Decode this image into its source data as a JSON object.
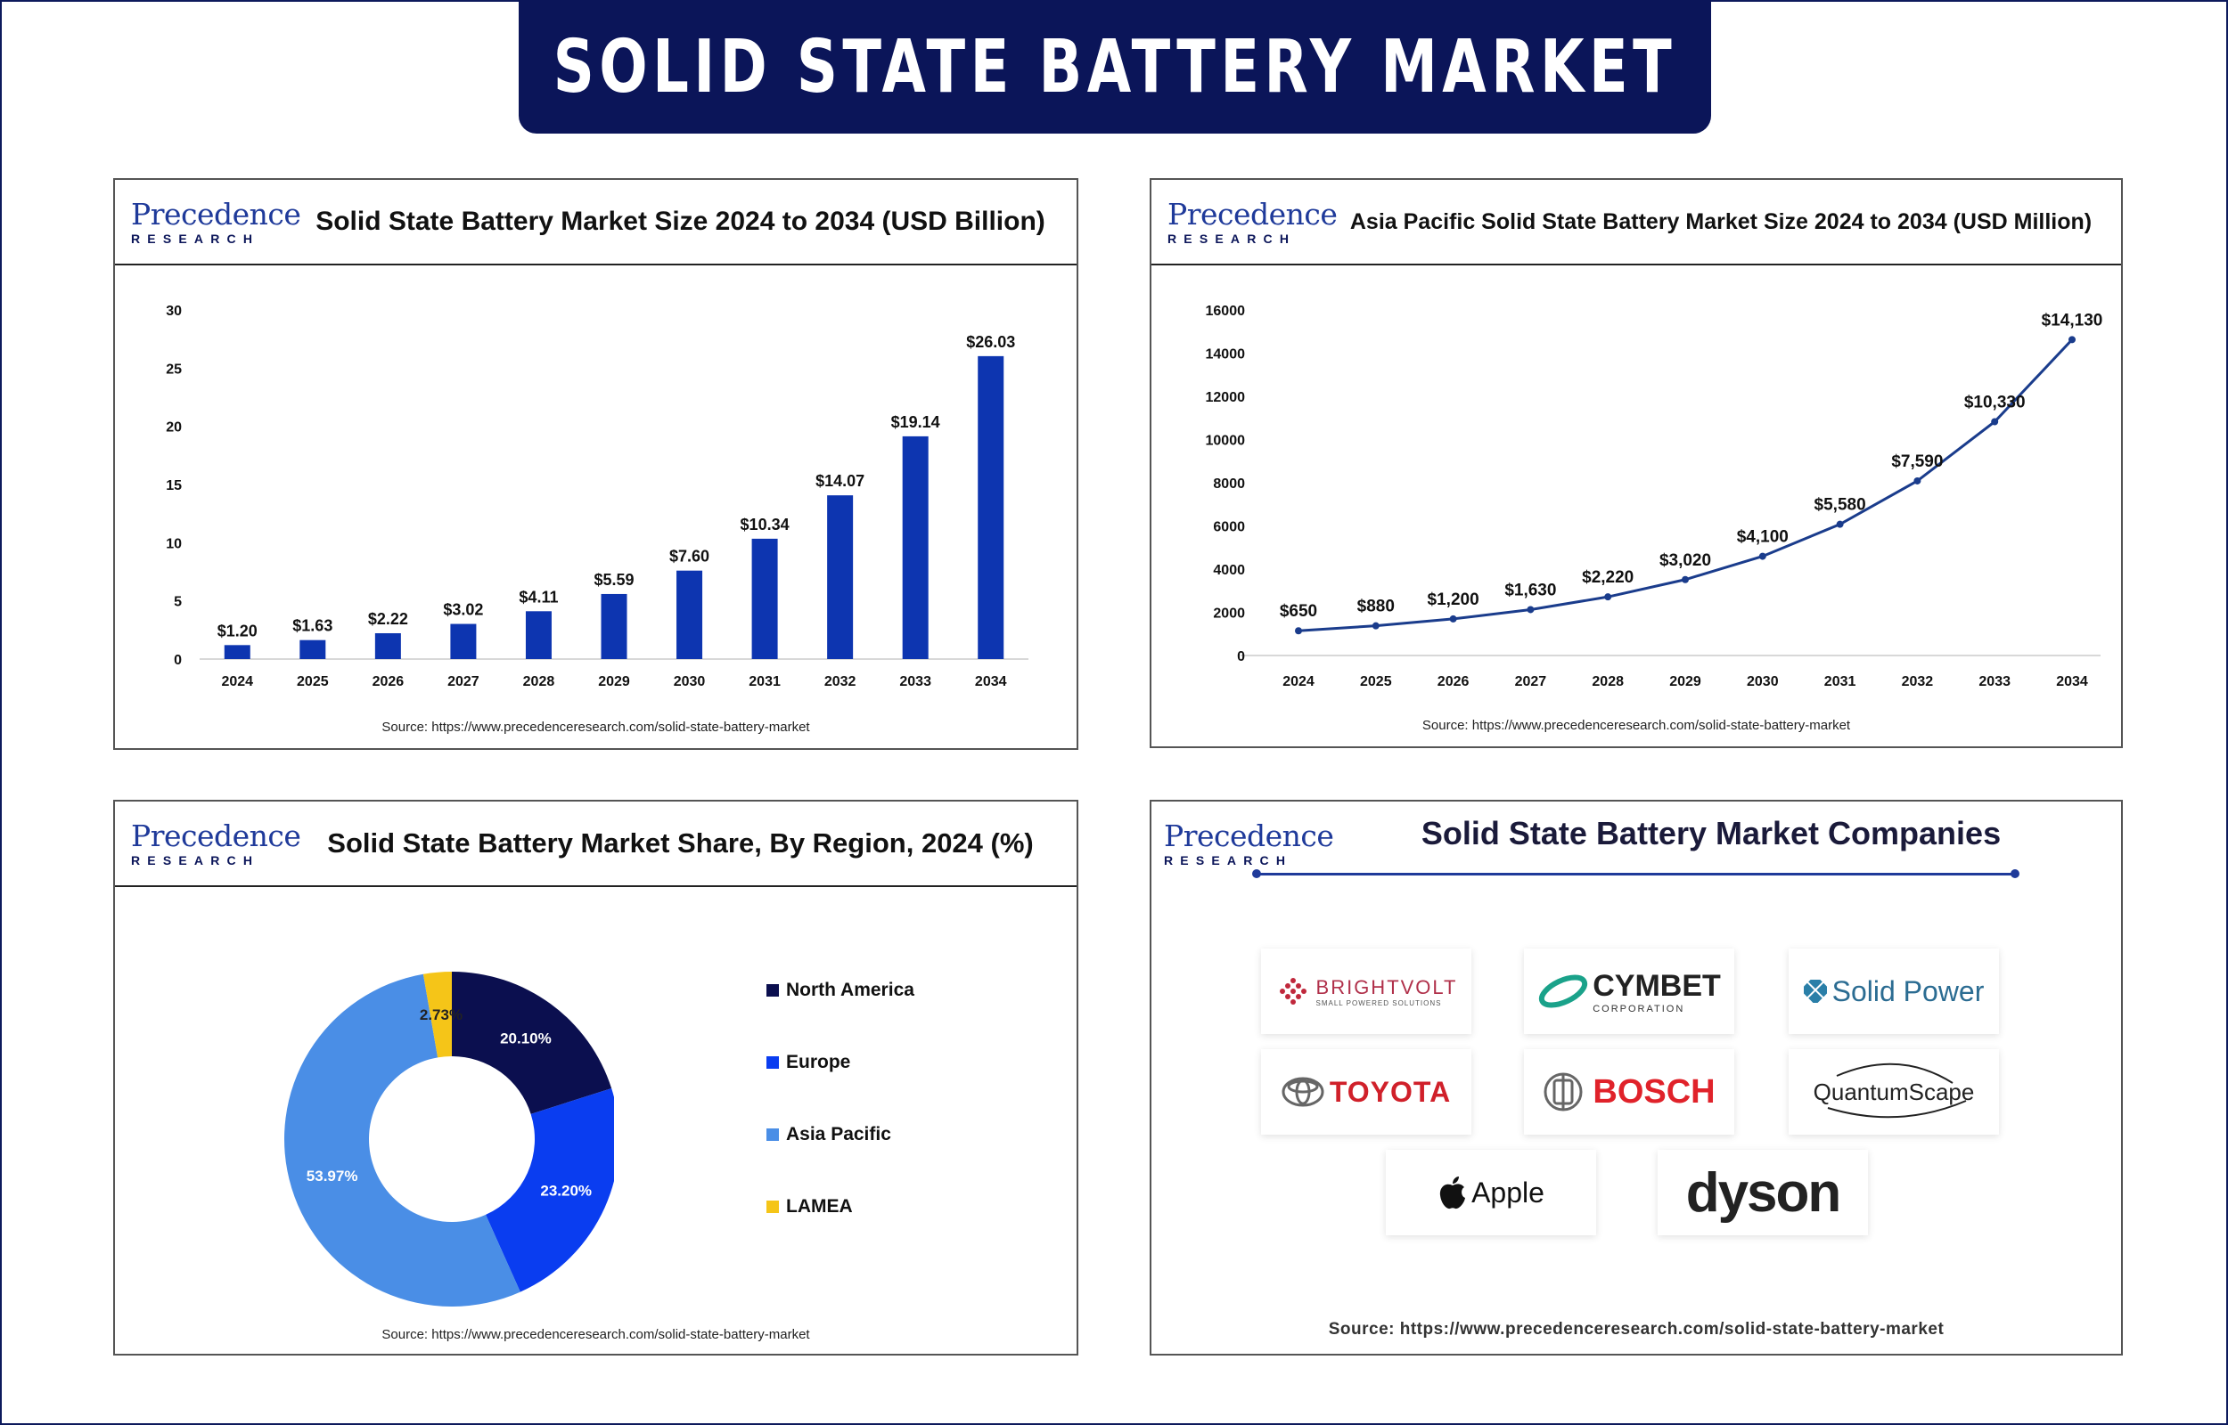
{
  "banner": {
    "title": "SOLID STATE BATTERY MARKET"
  },
  "logo": {
    "top": "Precedence",
    "bottom": "RESEARCH"
  },
  "colors": {
    "navy": "#0b1559",
    "bar": "#0d35b0",
    "line": "#1a3c8c",
    "north_america": "#0b0f4f",
    "europe": "#0a3df0",
    "asia_pacific": "#4a8ee6",
    "lamea": "#f5c518"
  },
  "panel1": {
    "title": "Solid State Battery Market Size 2024 to 2034 (USD Billion)",
    "source": "Source: https://www.precedenceresearch.com/solid-state-battery-market"
  },
  "panel2": {
    "title": "Asia Pacific Solid State Battery Market Size 2024 to 2034 (USD Million)",
    "source": "Source: https://www.precedenceresearch.com/solid-state-battery-market"
  },
  "panel3": {
    "title": "Solid State Battery Market Share, By Region, 2024 (%)",
    "source": "Source: https://www.precedenceresearch.com/solid-state-battery-market"
  },
  "panel4": {
    "title": "Solid State Battery Market Companies",
    "source": "Source: https://www.precedenceresearch.com/solid-state-battery-market",
    "companies": [
      "BRIGHTVOLT",
      "CYMBET",
      "Solid Power",
      "TOYOTA",
      "BOSCH",
      "QuantumScape",
      "Apple",
      "dyson"
    ],
    "brightvolt_tag": "SMALL POWERED SOLUTIONS",
    "cymbet_tag": "CORPORATION"
  },
  "chart_data": [
    {
      "type": "bar",
      "title": "Solid State Battery Market Size 2024 to 2034 (USD Billion)",
      "categories": [
        "2024",
        "2025",
        "2026",
        "2027",
        "2028",
        "2029",
        "2030",
        "2031",
        "2032",
        "2033",
        "2034"
      ],
      "values": [
        1.2,
        1.63,
        2.22,
        3.02,
        4.11,
        5.59,
        7.6,
        10.34,
        14.07,
        19.14,
        26.03
      ],
      "data_labels": [
        "$1.20",
        "$1.63",
        "$2.22",
        "$3.02",
        "$4.11",
        "$5.59",
        "$7.60",
        "$10.34",
        "$14.07",
        "$19.14",
        "$26.03"
      ],
      "ylim": [
        0,
        30
      ],
      "yticks": [
        "0",
        "5",
        "10",
        "15",
        "20",
        "25",
        "30"
      ],
      "grid": false
    },
    {
      "type": "line",
      "title": "Asia Pacific Solid State Battery Market Size 2024 to 2034 (USD Million)",
      "categories": [
        "2024",
        "2025",
        "2026",
        "2027",
        "2028",
        "2029",
        "2030",
        "2031",
        "2032",
        "2033",
        "2034"
      ],
      "values": [
        650,
        880,
        1200,
        1630,
        2220,
        3020,
        4100,
        5580,
        7590,
        10330,
        14130
      ],
      "data_labels": [
        "$650",
        "$880",
        "$1,200",
        "$1,630",
        "$2,220",
        "$3,020",
        "$4,100",
        "$5,580",
        "$7,590",
        "$10,330",
        "$14,130"
      ],
      "ylim": [
        0,
        16000
      ],
      "yticks": [
        "0",
        "2000",
        "4000",
        "6000",
        "8000",
        "10000",
        "12000",
        "14000",
        "16000"
      ],
      "grid": false
    },
    {
      "type": "pie",
      "title": "Solid State Battery Market Share, By Region, 2024 (%)",
      "categories": [
        "North America",
        "Europe",
        "Asia Pacific",
        "LAMEA"
      ],
      "values": [
        20.1,
        23.2,
        53.97,
        2.73
      ],
      "data_labels": [
        "20.10%",
        "23.20%",
        "53.97%",
        "2.73%"
      ],
      "legend": "right"
    }
  ]
}
